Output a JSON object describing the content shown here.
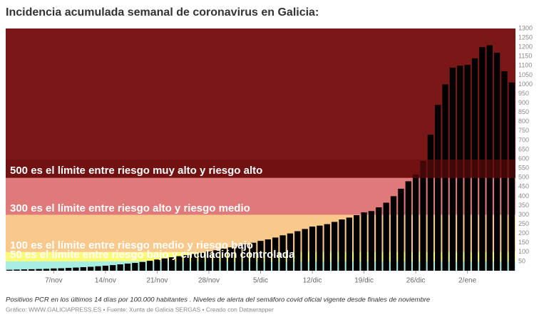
{
  "chart_data": {
    "type": "bar",
    "title": "Incidencia acumulada semanal de coronavirus en Galicia:",
    "note": "Positivos PCR en los últimos 14 días por 100.000 habitantes . Niveles de alerta del semáforo covid oficial vigente desde finales de noviembre",
    "credit": "Gráfico: WWW.GALICIAPRESS.ES • Fuente: Xunta de Galicia SERGAS • Creado con Datawrapper",
    "color": "#000000",
    "categories": [
      null,
      null,
      null,
      null,
      null,
      null,
      "7/nov",
      null,
      null,
      null,
      null,
      null,
      null,
      "14/nov",
      null,
      null,
      null,
      null,
      null,
      null,
      "21/nov",
      null,
      null,
      null,
      null,
      null,
      null,
      "28/nov",
      null,
      null,
      null,
      null,
      null,
      null,
      "5/dic",
      null,
      null,
      null,
      null,
      null,
      null,
      "12/dic",
      null,
      null,
      null,
      null,
      null,
      null,
      "19/dic",
      null,
      null,
      null,
      null,
      null,
      null,
      "26/dic",
      null,
      null,
      null,
      null,
      null,
      null,
      "2/ene",
      null,
      null,
      null,
      null,
      null,
      null
    ],
    "values": [
      5,
      6,
      7,
      8,
      9,
      10,
      12,
      13,
      15,
      17,
      19,
      21,
      24,
      27,
      30,
      34,
      38,
      42,
      47,
      53,
      60,
      66,
      72,
      78,
      84,
      90,
      96,
      103,
      110,
      118,
      125,
      133,
      141,
      150,
      160,
      168,
      178,
      190,
      200,
      212,
      224,
      237,
      242,
      250,
      262,
      275,
      285,
      298,
      313,
      320,
      340,
      365,
      400,
      440,
      480,
      516,
      590,
      730,
      890,
      1000,
      1090,
      1100,
      1105,
      1140,
      1200,
      1210,
      1170,
      1070,
      1010
    ],
    "ylim": [
      0,
      1300
    ],
    "yticks": [
      50,
      100,
      150,
      200,
      250,
      300,
      350,
      400,
      450,
      500,
      550,
      600,
      650,
      700,
      750,
      800,
      850,
      900,
      950,
      1000,
      1050,
      1100,
      1150,
      1200,
      1250,
      1300
    ],
    "bands": [
      {
        "from": 0,
        "to": 50,
        "color": "#a6ede3",
        "label": "50 es el límite entre riesgo bajo y circulación controlada"
      },
      {
        "from": 50,
        "to": 100,
        "color": "#fbfb7a",
        "label": "100 es el límite entre riesgo medio y riesgo bajo"
      },
      {
        "from": 100,
        "to": 300,
        "color": "#f9c98b",
        "label": "300 es el límite entre riesgo alto y riesgo medio"
      },
      {
        "from": 300,
        "to": 500,
        "color": "#e07a7a",
        "label": "500 es el límite entre riesgo muy alto y riesgo alto"
      },
      {
        "from": 500,
        "to": 1300,
        "color": "#7a1818"
      }
    ]
  }
}
